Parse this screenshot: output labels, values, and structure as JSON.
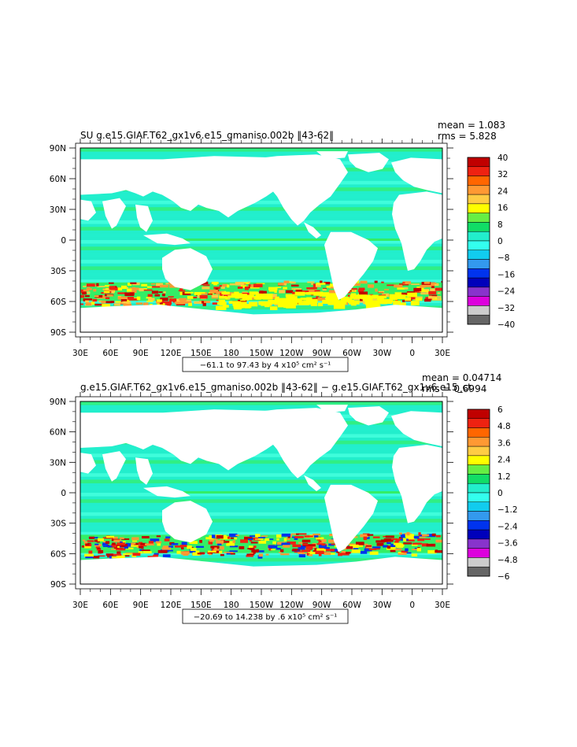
{
  "colors": {
    "land": "#ffffff",
    "frame": "#000000"
  },
  "chart_data": [
    {
      "type": "heatmap",
      "title": "SU g.e15.GIAF.T62_gx1v6.e15_gmaniso.002b ‖43-62‖",
      "stats": {
        "mean": "mean = 1.083",
        "rms": "rms = 5.828"
      },
      "xticks": [
        "30E",
        "60E",
        "90E",
        "120E",
        "150E",
        "180",
        "150W",
        "120W",
        "90W",
        "60W",
        "30W",
        "0",
        "30E"
      ],
      "yticks": [
        "90N",
        "60N",
        "30N",
        "0",
        "30S",
        "60S",
        "90S"
      ],
      "range_label": "−61.1 to 97.43 by 4 x10⁵ cm² s⁻¹",
      "colorbar": {
        "labels": [
          "40",
          "32",
          "24",
          "16",
          "8",
          "0",
          "−8",
          "−16",
          "−24",
          "−32",
          "−40"
        ],
        "colors": [
          "#c00000",
          "#ee2211",
          "#ff6600",
          "#ff9933",
          "#ffcc44",
          "#ffff00",
          "#66ee44",
          "#11dd66",
          "#22eecc",
          "#33ffee",
          "#11ccee",
          "#3399ee",
          "#0033ee",
          "#0000bb",
          "#8833cc",
          "#dd00dd",
          "#cccccc",
          "#666666"
        ]
      },
      "series_levels": {
        "ocean_background": 0,
        "southern_ocean_max": 40
      }
    },
    {
      "type": "heatmap",
      "title": "g.e15.GIAF.T62_gx1v6.e15_gmaniso.002b ‖43-62‖ − g.e15.GIAF.T62_gx1v6.e15_ct",
      "stats": {
        "mean": "mean = 0.04714",
        "rms": "rms = 0.6994"
      },
      "xticks": [
        "30E",
        "60E",
        "90E",
        "120E",
        "150E",
        "180",
        "150W",
        "120W",
        "90W",
        "60W",
        "30W",
        "0",
        "30E"
      ],
      "yticks": [
        "90N",
        "60N",
        "30N",
        "0",
        "30S",
        "60S",
        "90S"
      ],
      "range_label": "−20.69 to 14.238 by .6 x10⁵ cm² s⁻¹",
      "colorbar": {
        "labels": [
          "6",
          "4.8",
          "3.6",
          "2.4",
          "1.2",
          "0",
          "−1.2",
          "−2.4",
          "−3.6",
          "−4.8",
          "−6"
        ],
        "colors": [
          "#c00000",
          "#ee2211",
          "#ff6600",
          "#ff9933",
          "#ffcc44",
          "#ffff00",
          "#66ee44",
          "#11dd66",
          "#22eecc",
          "#33ffee",
          "#11ccee",
          "#3399ee",
          "#0033ee",
          "#0000bb",
          "#8833cc",
          "#dd00dd",
          "#cccccc",
          "#666666"
        ]
      },
      "series_levels": {
        "ocean_background": 0,
        "southern_ocean_max": 6
      }
    }
  ]
}
